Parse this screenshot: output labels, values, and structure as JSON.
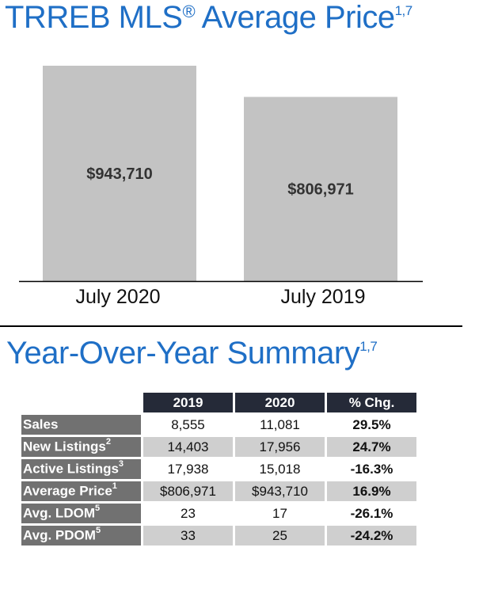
{
  "header": {
    "title": "TRREB MLS",
    "title_reg": "®",
    "title_rest": " Average Price",
    "title_sup": "1,7"
  },
  "chart_data": {
    "type": "bar",
    "categories": [
      "July 2020",
      "July 2019"
    ],
    "values": [
      943710,
      806971
    ],
    "value_labels": [
      "$943,710",
      "$806,971"
    ],
    "ylim": [
      0,
      943710
    ],
    "bar_color": "#c3c3c3",
    "grid": false,
    "title": "",
    "xlabel": "",
    "ylabel": ""
  },
  "summary": {
    "title": "Year-Over-Year Summary",
    "title_sup": "1,7",
    "columns": [
      "2019",
      "2020",
      "% Chg."
    ],
    "rows": [
      {
        "label": "Sales",
        "sup": "",
        "y2019": "8,555",
        "y2020": "11,081",
        "chg": "29.5%"
      },
      {
        "label": "New Listings",
        "sup": "2",
        "y2019": "14,403",
        "y2020": "17,956",
        "chg": "24.7%"
      },
      {
        "label": "Active Listings",
        "sup": "3",
        "y2019": "17,938",
        "y2020": "15,018",
        "chg": "-16.3%"
      },
      {
        "label": "Average Price",
        "sup": "1",
        "y2019": "$806,971",
        "y2020": "$943,710",
        "chg": "16.9%"
      },
      {
        "label": "Avg. LDOM",
        "sup": "5",
        "y2019": "23",
        "y2020": "17",
        "chg": "-26.1%"
      },
      {
        "label": "Avg. PDOM",
        "sup": "5",
        "y2019": "33",
        "y2020": "25",
        "chg": "-24.2%"
      }
    ]
  },
  "colors": {
    "title": "#1f6fc6",
    "header_bg": "#252a38",
    "row_label_bg": "#717171",
    "alt_row_bg": "#cfcfcf"
  }
}
